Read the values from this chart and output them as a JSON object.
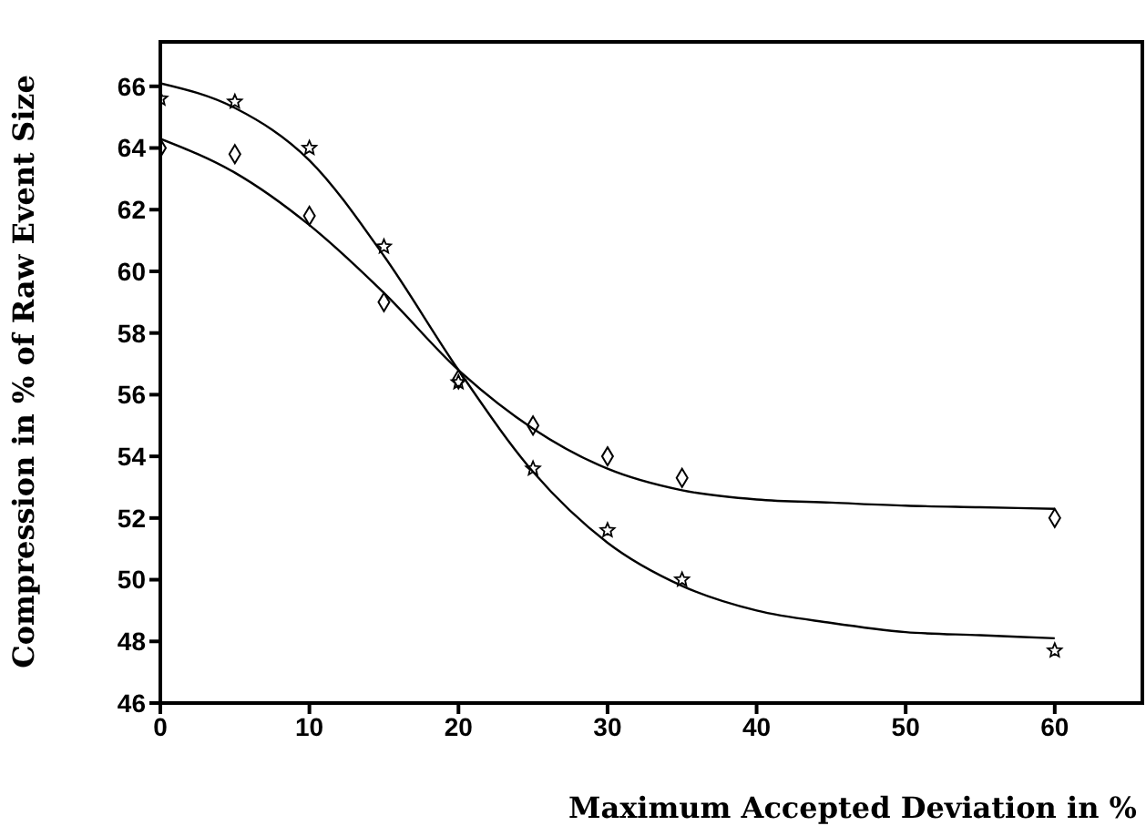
{
  "chart_data": {
    "type": "scatter",
    "xlabel": "Maximum Accepted Deviation in %",
    "ylabel": "Compression in % of Raw Event Size",
    "xlim": [
      0,
      66
    ],
    "ylim": [
      46,
      67.5
    ],
    "xticks": [
      0,
      10,
      20,
      30,
      40,
      50,
      60
    ],
    "yticks": [
      46,
      48,
      50,
      52,
      54,
      56,
      58,
      60,
      62,
      64,
      66
    ],
    "grid": false,
    "legend": false,
    "series": [
      {
        "marker": "star",
        "color": "#000000",
        "x": [
          0,
          5,
          10,
          15,
          20,
          25,
          30,
          35,
          60
        ],
        "values": [
          65.6,
          65.5,
          64,
          60.8,
          56.4,
          53.6,
          51.6,
          50,
          47.7
        ]
      },
      {
        "marker": "diamond",
        "color": "#000000",
        "x": [
          0,
          5,
          10,
          15,
          20,
          25,
          30,
          35,
          60
        ],
        "values": [
          64,
          63.8,
          61.8,
          59,
          56.5,
          55,
          54,
          53.3,
          52
        ]
      },
      {
        "type": "line",
        "marker": "none",
        "line_style": "solid",
        "color": "#000000",
        "x": [
          0,
          5,
          10,
          15,
          20,
          25,
          30,
          35,
          40,
          45,
          50,
          55,
          60
        ],
        "values": [
          66.1,
          65.3,
          63.6,
          60.5,
          56.8,
          53.5,
          51.2,
          49.8,
          49,
          48.6,
          48.3,
          48.2,
          48.1
        ]
      },
      {
        "type": "line",
        "marker": "none",
        "line_style": "solid",
        "color": "#000000",
        "x": [
          0,
          5,
          10,
          15,
          20,
          25,
          30,
          35,
          40,
          45,
          50,
          55,
          60
        ],
        "values": [
          64.3,
          63.2,
          61.5,
          59.3,
          56.8,
          54.9,
          53.6,
          52.9,
          52.6,
          52.5,
          52.4,
          52.35,
          52.3
        ]
      }
    ]
  }
}
